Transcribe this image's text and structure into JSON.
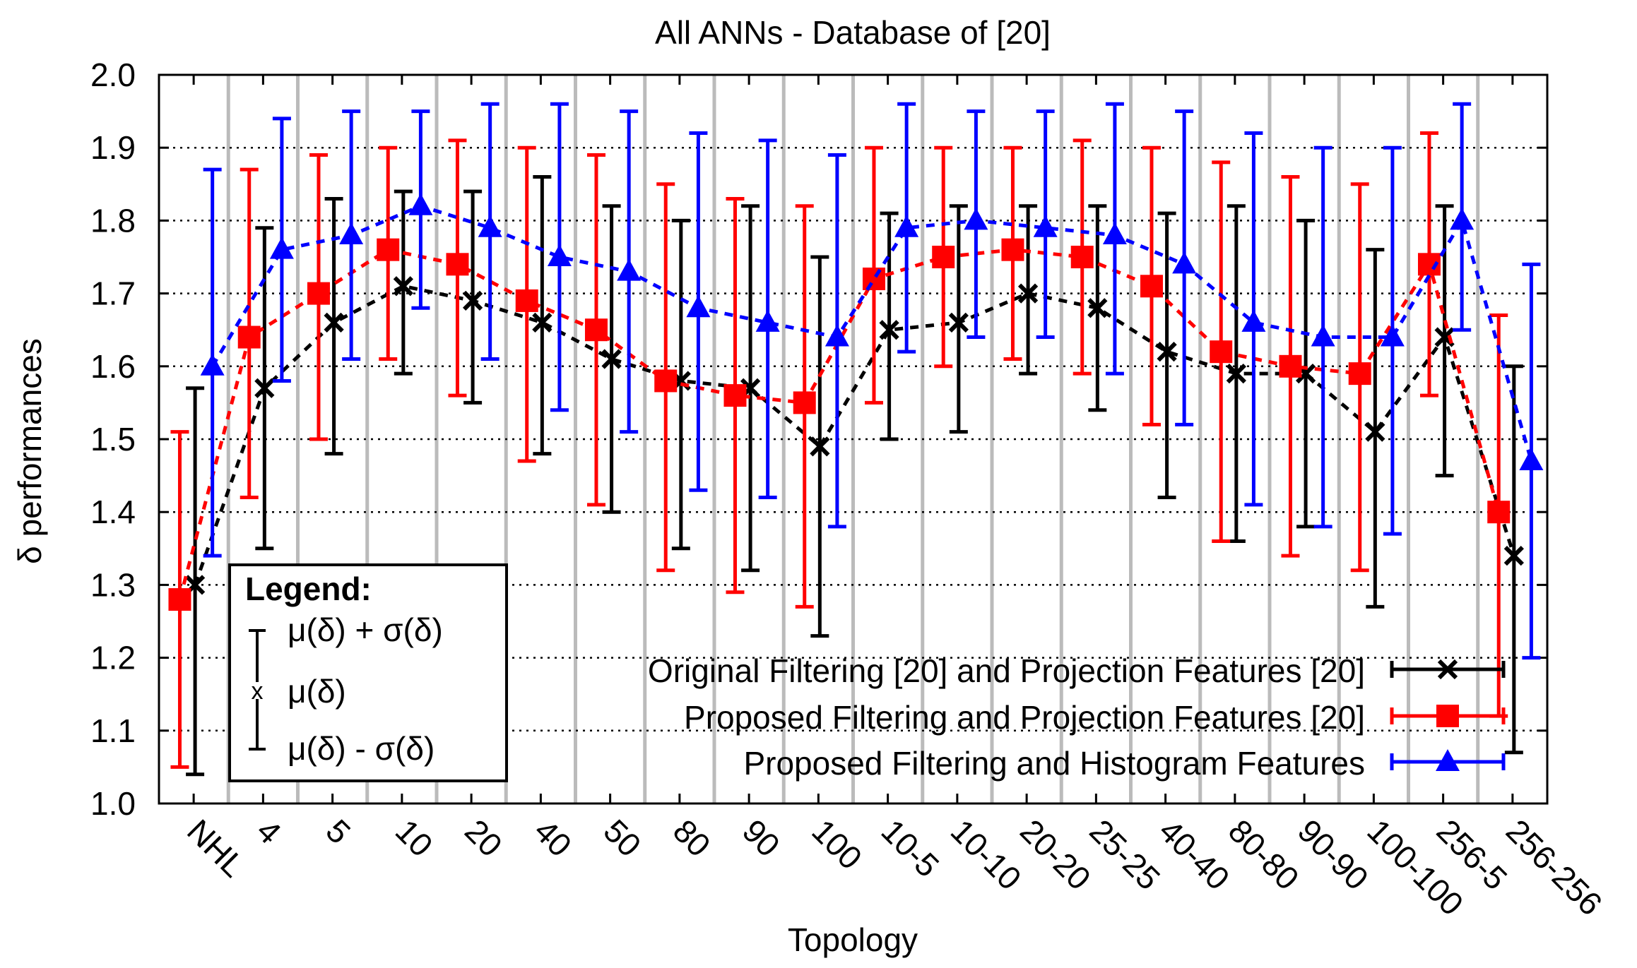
{
  "chart_data": {
    "type": "line",
    "title": "All ANNs - Database of [20]",
    "xlabel": "Topology",
    "ylabel": "δ performances",
    "ylim": [
      1.0,
      2.0
    ],
    "yticks": [
      "1.0",
      "1.1",
      "1.2",
      "1.3",
      "1.4",
      "1.5",
      "1.6",
      "1.7",
      "1.8",
      "1.9",
      "2.0"
    ],
    "grid": true,
    "categories": [
      "NHL",
      "4",
      "5",
      "10",
      "20",
      "40",
      "50",
      "80",
      "90",
      "100",
      "10-5",
      "10-10",
      "20-20",
      "25-25",
      "40-40",
      "80-80",
      "90-90",
      "100-100",
      "256-5",
      "256-256"
    ],
    "series": [
      {
        "name": "Original Filtering [20] and Projection Features [20]",
        "color": "#000000",
        "marker": "x",
        "mean": [
          1.3,
          1.57,
          1.66,
          1.71,
          1.69,
          1.66,
          1.61,
          1.58,
          1.57,
          1.49,
          1.65,
          1.66,
          1.7,
          1.68,
          1.62,
          1.59,
          1.59,
          1.51,
          1.64,
          1.34
        ],
        "upper": [
          1.57,
          1.79,
          1.83,
          1.84,
          1.84,
          1.86,
          1.82,
          1.8,
          1.82,
          1.75,
          1.81,
          1.82,
          1.82,
          1.82,
          1.81,
          1.82,
          1.8,
          1.76,
          1.82,
          1.6
        ],
        "lower": [
          1.04,
          1.35,
          1.48,
          1.59,
          1.55,
          1.48,
          1.4,
          1.35,
          1.32,
          1.23,
          1.5,
          1.51,
          1.59,
          1.54,
          1.42,
          1.36,
          1.38,
          1.27,
          1.45,
          1.07
        ]
      },
      {
        "name": "Proposed Filtering and Projection Features [20]",
        "color": "#ff0000",
        "marker": "square",
        "mean": [
          1.28,
          1.64,
          1.7,
          1.76,
          1.74,
          1.69,
          1.65,
          1.58,
          1.56,
          1.55,
          1.72,
          1.75,
          1.76,
          1.75,
          1.71,
          1.62,
          1.6,
          1.59,
          1.74,
          1.4
        ],
        "upper": [
          1.51,
          1.87,
          1.89,
          1.9,
          1.91,
          1.9,
          1.89,
          1.85,
          1.83,
          1.82,
          1.9,
          1.9,
          1.9,
          1.91,
          1.9,
          1.88,
          1.86,
          1.85,
          1.92,
          1.67
        ],
        "lower": [
          1.05,
          1.42,
          1.5,
          1.61,
          1.56,
          1.47,
          1.41,
          1.32,
          1.29,
          1.27,
          1.55,
          1.6,
          1.61,
          1.59,
          1.52,
          1.36,
          1.34,
          1.32,
          1.56,
          1.12
        ]
      },
      {
        "name": "Proposed Filtering and Histogram Features",
        "color": "#0000ff",
        "marker": "triangle",
        "mean": [
          1.6,
          1.76,
          1.78,
          1.82,
          1.79,
          1.75,
          1.73,
          1.68,
          1.66,
          1.64,
          1.79,
          1.8,
          1.79,
          1.78,
          1.74,
          1.66,
          1.64,
          1.64,
          1.8,
          1.47
        ],
        "upper": [
          1.87,
          1.94,
          1.95,
          1.95,
          1.96,
          1.96,
          1.95,
          1.92,
          1.91,
          1.89,
          1.96,
          1.95,
          1.95,
          1.96,
          1.95,
          1.92,
          1.9,
          1.9,
          1.96,
          1.74
        ],
        "lower": [
          1.34,
          1.58,
          1.61,
          1.68,
          1.61,
          1.54,
          1.51,
          1.43,
          1.42,
          1.38,
          1.62,
          1.64,
          1.64,
          1.59,
          1.52,
          1.41,
          1.38,
          1.37,
          1.65,
          1.2
        ]
      }
    ],
    "legend_box": {
      "title": "Legend:",
      "upper_label": "μ(δ) + σ(δ)",
      "mean_label": "μ(δ)",
      "lower_label": "μ(δ) - σ(δ)"
    },
    "legend_position": "bottom-right"
  }
}
